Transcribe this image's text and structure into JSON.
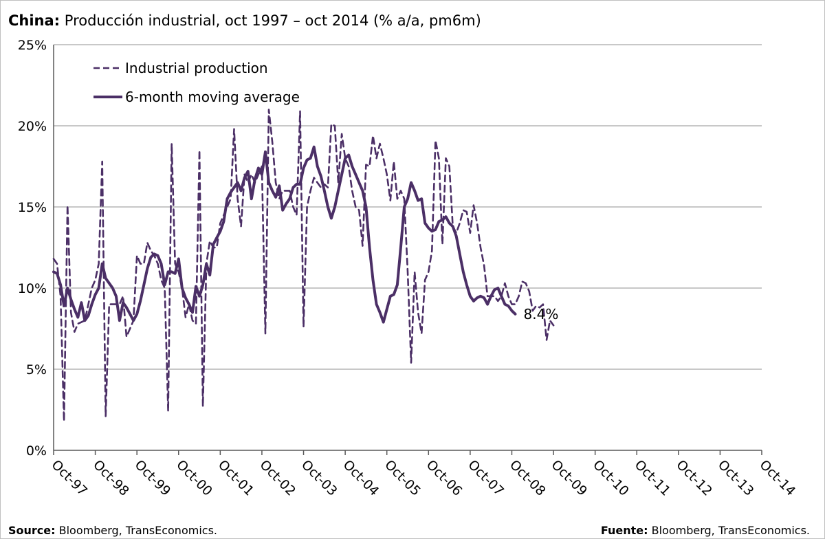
{
  "title": {
    "bold": "China:",
    "text": " Producción industrial, oct 1997 – oct 2014 (% a/a, pm6m)"
  },
  "footer": {
    "left_bold": "Source:",
    "left_text": " Bloomberg, TransEconomics.",
    "right_bold": "Fuente:",
    "right_text": " Bloomberg, TransEconomics."
  },
  "colors": {
    "series": "#4b2f66",
    "grid": "#a6a6a6",
    "axis": "#595959"
  },
  "chart_data": {
    "type": "line",
    "title": "China: Producción industrial, oct 1997 – oct 2014 (% a/a, pm6m)",
    "xlabel": "",
    "ylabel": "",
    "x_range": [
      "1997-10",
      "2014-10"
    ],
    "ylim": [
      0,
      25
    ],
    "y_ticks": [
      "0%",
      "5%",
      "10%",
      "15%",
      "20%",
      "25%"
    ],
    "x_ticks": [
      "Oct-97",
      "Oct-98",
      "Oct-99",
      "Oct-00",
      "Oct-01",
      "Oct-02",
      "Oct-03",
      "Oct-04",
      "Oct-05",
      "Oct-06",
      "Oct-07",
      "Oct-08",
      "Oct-09",
      "Oct-10",
      "Oct-11",
      "Oct-12",
      "Oct-13",
      "Oct-14"
    ],
    "grid": "horizontal",
    "legend_position": "top-left",
    "end_label": "8.4%",
    "series": [
      {
        "name": "Industrial production",
        "style": "dashed",
        "points": [
          [
            "1997-10",
            11.8
          ],
          [
            "1997-11",
            11.5
          ],
          [
            "1997-12",
            9.5
          ],
          [
            "1998-01",
            1.8
          ],
          [
            "1998-02",
            15.1
          ],
          [
            "1998-03",
            8.5
          ],
          [
            "1998-04",
            7.3
          ],
          [
            "1998-05",
            7.8
          ],
          [
            "1998-06",
            7.9
          ],
          [
            "1998-07",
            8.0
          ],
          [
            "1998-08",
            9.0
          ],
          [
            "1998-09",
            10.0
          ],
          [
            "1998-10",
            10.5
          ],
          [
            "1998-11",
            11.5
          ],
          [
            "1998-12",
            17.8
          ],
          [
            "1999-01",
            2.1
          ],
          [
            "1999-02",
            9.0
          ],
          [
            "1999-03",
            9.0
          ],
          [
            "1999-04",
            9.0
          ],
          [
            "1999-05",
            9.0
          ],
          [
            "1999-06",
            9.5
          ],
          [
            "1999-07",
            7.0
          ],
          [
            "1999-08",
            7.5
          ],
          [
            "1999-09",
            8.0
          ],
          [
            "1999-10",
            12.0
          ],
          [
            "1999-11",
            11.5
          ],
          [
            "1999-12",
            11.5
          ],
          [
            "2000-01",
            12.8
          ],
          [
            "2000-02",
            12.3
          ],
          [
            "2000-03",
            12.0
          ],
          [
            "2000-04",
            11.5
          ],
          [
            "2000-05",
            10.5
          ],
          [
            "2000-06",
            10.0
          ],
          [
            "2000-07",
            2.4
          ],
          [
            "2000-08",
            18.9
          ],
          [
            "2000-09",
            11.5
          ],
          [
            "2000-10",
            11.0
          ],
          [
            "2000-11",
            10.0
          ],
          [
            "2000-12",
            8.2
          ],
          [
            "2001-01",
            9.0
          ],
          [
            "2001-02",
            8.0
          ],
          [
            "2001-03",
            7.8
          ],
          [
            "2001-04",
            18.5
          ],
          [
            "2001-05",
            2.7
          ],
          [
            "2001-06",
            11.5
          ],
          [
            "2001-07",
            12.9
          ],
          [
            "2001-08",
            12.5
          ],
          [
            "2001-09",
            12.5
          ],
          [
            "2001-10",
            14.0
          ],
          [
            "2001-11",
            14.5
          ],
          [
            "2001-12",
            15.0
          ],
          [
            "2002-01",
            15.5
          ],
          [
            "2002-02",
            19.8
          ],
          [
            "2002-03",
            15.5
          ],
          [
            "2002-04",
            13.8
          ],
          [
            "2002-05",
            17.0
          ],
          [
            "2002-06",
            16.5
          ],
          [
            "2002-07",
            17.0
          ],
          [
            "2002-08",
            16.5
          ],
          [
            "2002-09",
            17.0
          ],
          [
            "2002-10",
            17.5
          ],
          [
            "2002-11",
            7.2
          ],
          [
            "2002-12",
            21.0
          ],
          [
            "2003-01",
            19.0
          ],
          [
            "2003-02",
            16.5
          ],
          [
            "2003-03",
            15.5
          ],
          [
            "2003-04",
            16.0
          ],
          [
            "2003-05",
            16.0
          ],
          [
            "2003-06",
            16.0
          ],
          [
            "2003-07",
            15.0
          ],
          [
            "2003-08",
            14.5
          ],
          [
            "2003-09",
            20.9
          ],
          [
            "2003-10",
            7.6
          ],
          [
            "2003-11",
            15.0
          ],
          [
            "2003-12",
            16.0
          ],
          [
            "2004-01",
            16.8
          ],
          [
            "2004-02",
            16.5
          ],
          [
            "2004-03",
            16.2
          ],
          [
            "2004-04",
            16.4
          ],
          [
            "2004-05",
            16.2
          ],
          [
            "2004-06",
            20.1
          ],
          [
            "2004-07",
            20.0
          ],
          [
            "2004-08",
            16.5
          ],
          [
            "2004-09",
            19.5
          ],
          [
            "2004-10",
            18.0
          ],
          [
            "2004-11",
            17.5
          ],
          [
            "2004-12",
            16.0
          ],
          [
            "2005-01",
            15.0
          ],
          [
            "2005-02",
            14.8
          ],
          [
            "2005-03",
            12.6
          ],
          [
            "2005-04",
            17.6
          ],
          [
            "2005-05",
            17.5
          ],
          [
            "2005-06",
            19.4
          ],
          [
            "2005-07",
            18.0
          ],
          [
            "2005-08",
            18.9
          ],
          [
            "2005-09",
            18.0
          ],
          [
            "2005-10",
            17.0
          ],
          [
            "2005-11",
            15.4
          ],
          [
            "2005-12",
            17.8
          ],
          [
            "2006-01",
            15.5
          ],
          [
            "2006-02",
            16.0
          ],
          [
            "2006-03",
            15.5
          ],
          [
            "2006-04",
            11.0
          ],
          [
            "2006-05",
            5.4
          ],
          [
            "2006-06",
            11.0
          ],
          [
            "2006-07",
            8.5
          ],
          [
            "2006-08",
            7.2
          ],
          [
            "2006-09",
            10.5
          ],
          [
            "2006-10",
            11.0
          ],
          [
            "2006-11",
            12.3
          ],
          [
            "2006-12",
            19.1
          ],
          [
            "2007-01",
            18.0
          ],
          [
            "2007-02",
            12.7
          ],
          [
            "2007-03",
            18.0
          ],
          [
            "2007-04",
            17.5
          ],
          [
            "2007-05",
            13.8
          ],
          [
            "2007-06",
            13.4
          ],
          [
            "2007-07",
            14.0
          ],
          [
            "2007-08",
            14.8
          ],
          [
            "2007-09",
            14.7
          ],
          [
            "2007-10",
            13.4
          ],
          [
            "2007-11",
            15.1
          ],
          [
            "2007-12",
            14.0
          ],
          [
            "2008-01",
            12.5
          ],
          [
            "2008-02",
            11.4
          ],
          [
            "2008-03",
            9.5
          ],
          [
            "2008-04",
            9.5
          ],
          [
            "2008-05",
            9.5
          ],
          [
            "2008-06",
            9.2
          ],
          [
            "2008-07",
            9.5
          ],
          [
            "2008-08",
            10.3
          ],
          [
            "2008-09",
            9.5
          ],
          [
            "2008-10",
            9.0
          ],
          [
            "2008-11",
            9.0
          ],
          [
            "2008-12",
            9.5
          ],
          [
            "2009-01",
            10.4
          ],
          [
            "2009-02",
            10.3
          ],
          [
            "2009-03",
            9.8
          ],
          [
            "2009-04",
            8.6
          ],
          [
            "2009-05",
            8.9
          ],
          [
            "2009-06",
            8.8
          ],
          [
            "2009-07",
            9.0
          ],
          [
            "2009-08",
            6.8
          ],
          [
            "2009-09",
            8.0
          ],
          [
            "2009-10",
            7.7
          ]
        ]
      },
      {
        "name": "6-month moving average",
        "style": "solid",
        "points": [
          [
            "1997-10",
            11.0
          ],
          [
            "1997-11",
            10.9
          ],
          [
            "1997-12",
            10.2
          ],
          [
            "1998-01",
            8.9
          ],
          [
            "1998-02",
            10.0
          ],
          [
            "1998-03",
            9.3
          ],
          [
            "1998-04",
            8.7
          ],
          [
            "1998-05",
            8.2
          ],
          [
            "1998-06",
            9.1
          ],
          [
            "1998-07",
            8.0
          ],
          [
            "1998-08",
            8.3
          ],
          [
            "1998-09",
            9.0
          ],
          [
            "1998-10",
            9.6
          ],
          [
            "1998-11",
            10.0
          ],
          [
            "1998-12",
            11.5
          ],
          [
            "1999-01",
            10.6
          ],
          [
            "1999-02",
            10.3
          ],
          [
            "1999-03",
            10.0
          ],
          [
            "1999-04",
            9.5
          ],
          [
            "1999-05",
            8.0
          ],
          [
            "1999-06",
            9.1
          ],
          [
            "1999-07",
            8.8
          ],
          [
            "1999-08",
            8.4
          ],
          [
            "1999-09",
            8.0
          ],
          [
            "1999-10",
            8.4
          ],
          [
            "1999-11",
            9.2
          ],
          [
            "1999-12",
            10.2
          ],
          [
            "2000-01",
            11.2
          ],
          [
            "2000-02",
            11.9
          ],
          [
            "2000-03",
            12.1
          ],
          [
            "2000-04",
            12.0
          ],
          [
            "2000-05",
            11.5
          ],
          [
            "2000-06",
            10.2
          ],
          [
            "2000-07",
            11.0
          ],
          [
            "2000-08",
            11.0
          ],
          [
            "2000-09",
            10.9
          ],
          [
            "2000-10",
            11.8
          ],
          [
            "2000-11",
            10.0
          ],
          [
            "2000-12",
            9.4
          ],
          [
            "2001-01",
            9.0
          ],
          [
            "2001-02",
            8.5
          ],
          [
            "2001-03",
            10.1
          ],
          [
            "2001-04",
            9.5
          ],
          [
            "2001-05",
            10.2
          ],
          [
            "2001-06",
            11.5
          ],
          [
            "2001-07",
            10.8
          ],
          [
            "2001-08",
            12.7
          ],
          [
            "2001-09",
            13.1
          ],
          [
            "2001-10",
            13.5
          ],
          [
            "2001-11",
            14.1
          ],
          [
            "2001-12",
            15.5
          ],
          [
            "2002-01",
            15.9
          ],
          [
            "2002-02",
            16.2
          ],
          [
            "2002-03",
            16.5
          ],
          [
            "2002-04",
            16.0
          ],
          [
            "2002-05",
            16.8
          ],
          [
            "2002-06",
            17.2
          ],
          [
            "2002-07",
            15.5
          ],
          [
            "2002-08",
            16.7
          ],
          [
            "2002-09",
            17.4
          ],
          [
            "2002-10",
            17.0
          ],
          [
            "2002-11",
            18.4
          ],
          [
            "2002-12",
            16.5
          ],
          [
            "2003-01",
            16.0
          ],
          [
            "2003-02",
            15.6
          ],
          [
            "2003-03",
            16.3
          ],
          [
            "2003-04",
            14.8
          ],
          [
            "2003-05",
            15.2
          ],
          [
            "2003-06",
            15.5
          ],
          [
            "2003-07",
            16.2
          ],
          [
            "2003-08",
            16.4
          ],
          [
            "2003-09",
            16.4
          ],
          [
            "2003-10",
            17.4
          ],
          [
            "2003-11",
            17.9
          ],
          [
            "2003-12",
            18.0
          ],
          [
            "2004-01",
            18.7
          ],
          [
            "2004-02",
            17.5
          ],
          [
            "2004-03",
            16.9
          ],
          [
            "2004-04",
            16.0
          ],
          [
            "2004-05",
            15.0
          ],
          [
            "2004-06",
            14.3
          ],
          [
            "2004-07",
            15.0
          ],
          [
            "2004-08",
            16.0
          ],
          [
            "2004-09",
            17.0
          ],
          [
            "2004-10",
            18.0
          ],
          [
            "2004-11",
            18.2
          ],
          [
            "2004-12",
            17.5
          ],
          [
            "2005-01",
            17.0
          ],
          [
            "2005-02",
            16.5
          ],
          [
            "2005-03",
            16.0
          ],
          [
            "2005-04",
            15.0
          ],
          [
            "2005-05",
            12.5
          ],
          [
            "2005-06",
            10.5
          ],
          [
            "2005-07",
            9.0
          ],
          [
            "2005-08",
            8.5
          ],
          [
            "2005-09",
            7.9
          ],
          [
            "2005-10",
            8.7
          ],
          [
            "2005-11",
            9.5
          ],
          [
            "2005-12",
            9.6
          ],
          [
            "2006-01",
            10.2
          ],
          [
            "2006-02",
            12.5
          ],
          [
            "2006-03",
            15.0
          ],
          [
            "2006-04",
            15.5
          ],
          [
            "2006-05",
            16.5
          ],
          [
            "2006-06",
            16.0
          ],
          [
            "2006-07",
            15.4
          ],
          [
            "2006-08",
            15.5
          ],
          [
            "2006-09",
            14.0
          ],
          [
            "2006-10",
            13.7
          ],
          [
            "2006-11",
            13.5
          ],
          [
            "2006-12",
            13.6
          ],
          [
            "2007-01",
            14.1
          ],
          [
            "2007-02",
            14.2
          ],
          [
            "2007-03",
            14.4
          ],
          [
            "2007-04",
            14.0
          ],
          [
            "2007-05",
            13.8
          ],
          [
            "2007-06",
            13.2
          ],
          [
            "2007-07",
            12.1
          ],
          [
            "2007-08",
            11.0
          ],
          [
            "2007-09",
            10.2
          ],
          [
            "2007-10",
            9.5
          ],
          [
            "2007-11",
            9.2
          ],
          [
            "2007-12",
            9.4
          ],
          [
            "2008-01",
            9.5
          ],
          [
            "2008-02",
            9.4
          ],
          [
            "2008-03",
            9.0
          ],
          [
            "2008-04",
            9.5
          ],
          [
            "2008-05",
            9.9
          ],
          [
            "2008-06",
            10.0
          ],
          [
            "2008-07",
            9.5
          ],
          [
            "2008-08",
            9.0
          ],
          [
            "2008-09",
            8.9
          ],
          [
            "2008-10",
            8.6
          ],
          [
            "2008-11",
            8.4
          ]
        ]
      }
    ]
  }
}
